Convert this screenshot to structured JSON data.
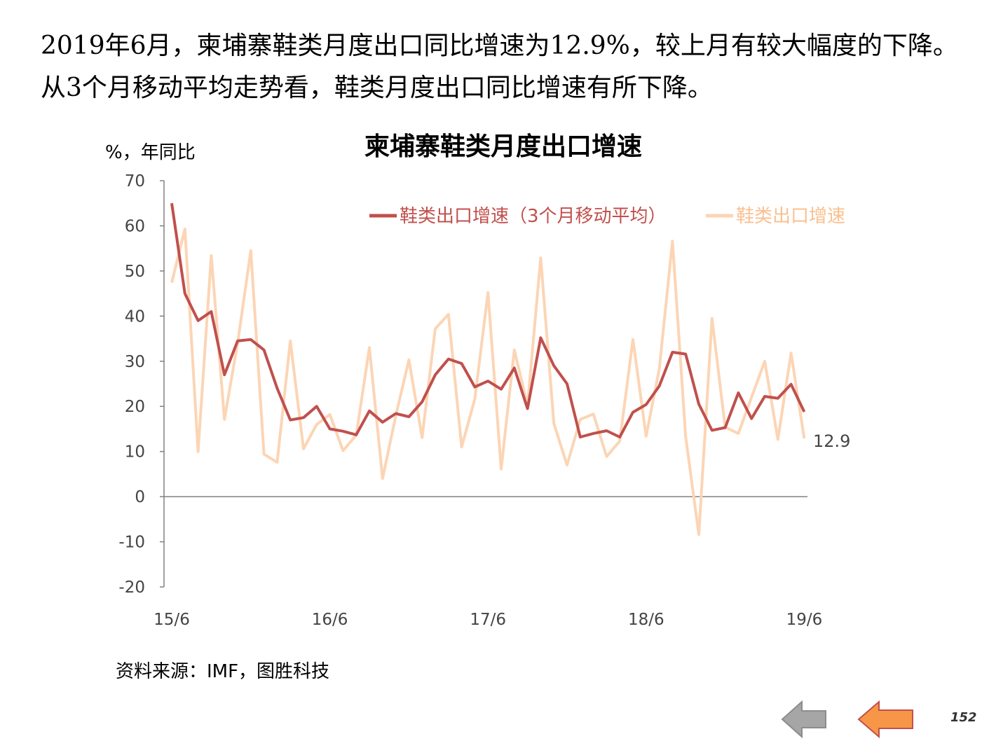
{
  "intro_text": "2019年6月，柬埔寨鞋类月度出口同比增速为12.9%，较上月有较大幅度的下降。从3个月移动平均走势看，鞋类月度出口同比增速有所下降。",
  "unit_label": "%，年同比",
  "source_text": "资料来源：IMF，图胜科技",
  "page_number": "152",
  "nav": {
    "back_icon": "arrow-left-icon",
    "prev_icon": "arrow-left-icon"
  },
  "colors": {
    "ma_line": "#c0504d",
    "raw_line": "#fcd5b5",
    "axis": "#808080"
  },
  "chart_data": {
    "type": "line",
    "title": "柬埔寨鞋类月度出口增速",
    "ylabel": "%，年同比",
    "xlabel": "",
    "ylim": [
      -20,
      70
    ],
    "yticks": [
      "70",
      "60",
      "50",
      "40",
      "30",
      "20",
      "10",
      "0",
      "-10",
      "-20"
    ],
    "xtick_labels": [
      "15/6",
      "16/6",
      "17/6",
      "18/6",
      "19/6"
    ],
    "legend_position": "top-right",
    "end_label": "12.9",
    "series": [
      {
        "name": "鞋类出口增速（3个月移动平均）",
        "values": [
          65,
          45,
          39,
          41,
          27,
          34.5,
          34.8,
          32.5,
          24,
          17,
          17.5,
          20,
          15,
          14.5,
          13.7,
          19,
          16.5,
          18.4,
          17.7,
          21,
          27,
          30.5,
          29.5,
          24.3,
          25.6,
          23.8,
          28.5,
          19.5,
          35.2,
          29,
          25,
          13.2,
          14,
          14.6,
          13.2,
          18.7,
          20.4,
          24.5,
          32,
          31.6,
          20.5,
          14.7,
          15.3,
          23,
          17.3,
          22.2,
          21.8,
          24.9,
          18.8
        ]
      },
      {
        "name": "鞋类出口增速",
        "values": [
          47.4,
          59.3,
          10,
          53.4,
          17.1,
          34,
          54.5,
          9.4,
          7.6,
          34.5,
          10.6,
          16,
          18.2,
          10.2,
          13.6,
          33,
          4,
          17.9,
          30.3,
          13.1,
          37.2,
          40.4,
          11,
          21.6,
          45.2,
          6.1,
          32.5,
          20.2,
          52.9,
          16.2,
          7,
          17.1,
          18.3,
          8.9,
          12.3,
          34.8,
          13.4,
          28.3,
          56.6,
          13.3,
          -8.4,
          39.5,
          15.4,
          14,
          22,
          30,
          12.7,
          31.8,
          12.9
        ]
      }
    ]
  }
}
